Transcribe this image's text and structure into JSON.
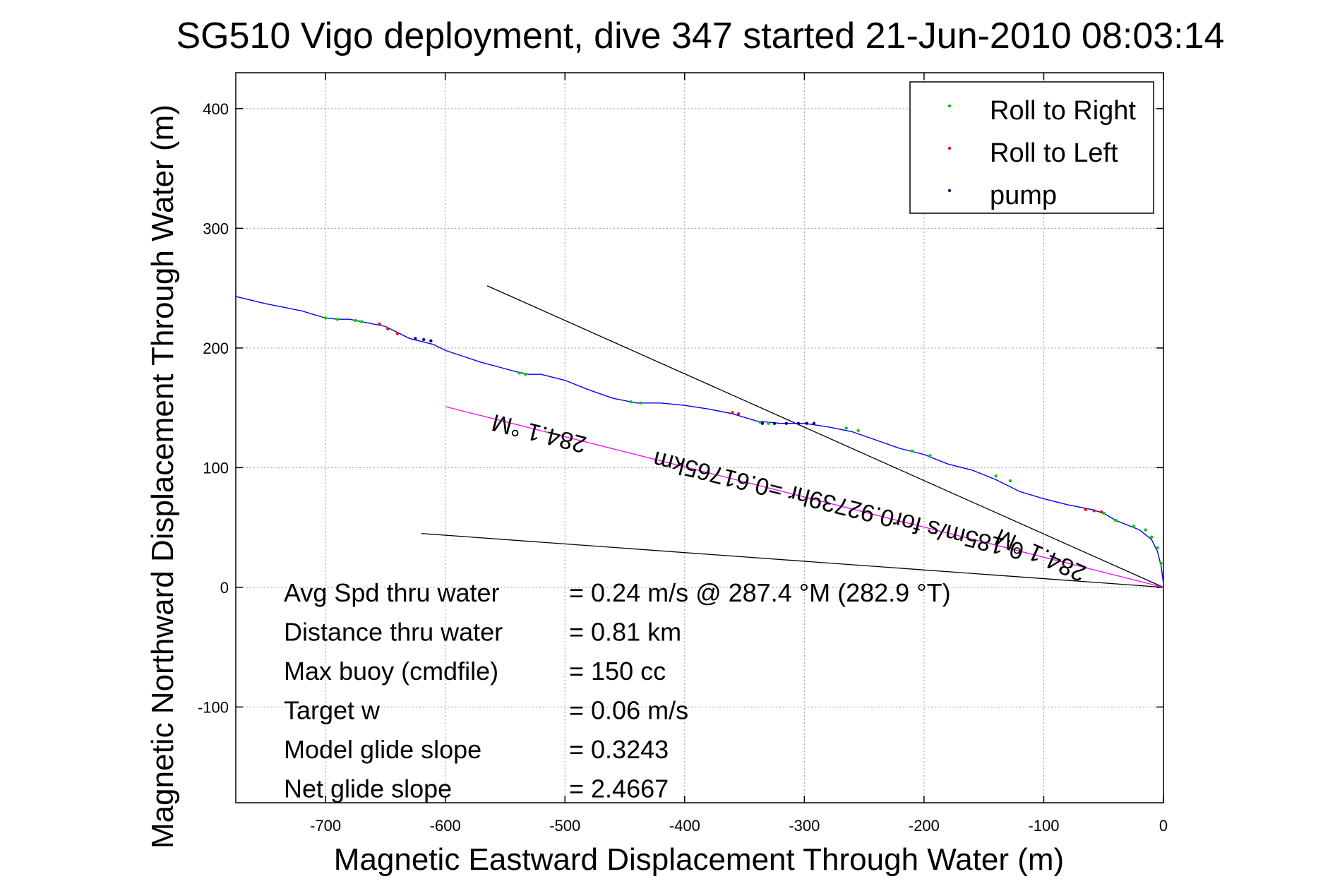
{
  "title": "SG510 Vigo deployment, dive 347 started 21-Jun-2010 08:03:14",
  "chart_data": {
    "type": "line",
    "xlabel": "Magnetic Eastward Displacement Through Water (m)",
    "ylabel": "Magnetic Northward Displacement Through Water (m)",
    "xlim": [
      -775,
      0
    ],
    "ylim": [
      -180,
      430
    ],
    "xticks": [
      -700,
      -600,
      -500,
      -400,
      -300,
      -200,
      -100,
      0
    ],
    "yticks": [
      -100,
      0,
      100,
      200,
      300,
      400
    ],
    "xtick_labels": [
      "-700",
      "-600",
      "-500",
      "-400",
      "-300",
      "-200",
      "-100",
      "0"
    ],
    "ytick_labels": [
      "-100",
      "0",
      "100",
      "200",
      "300",
      "400"
    ],
    "grid": true,
    "legend_position": "top-right",
    "legend": [
      {
        "label": "Roll to Right",
        "color": "#00cc00"
      },
      {
        "label": "Roll to Left",
        "color": "#ff0000"
      },
      {
        "label": "pump",
        "color": "#000080"
      }
    ],
    "track": {
      "color": "#0000ff",
      "x": [
        -775,
        -750,
        -720,
        -700,
        -690,
        -680,
        -670,
        -650,
        -630,
        -610,
        -600,
        -585,
        -570,
        -555,
        -540,
        -530,
        -520,
        -500,
        -480,
        -460,
        -440,
        -420,
        -400,
        -380,
        -360,
        -340,
        -320,
        -300,
        -280,
        -260,
        -240,
        -220,
        -200,
        -180,
        -160,
        -140,
        -120,
        -100,
        -80,
        -60,
        -50,
        -40,
        -30,
        -20,
        -10,
        -5,
        -2,
        0
      ],
      "y": [
        243,
        237,
        231,
        225,
        224,
        224,
        222,
        218,
        208,
        203,
        198,
        193,
        188,
        184,
        180,
        178,
        178,
        173,
        165,
        158,
        154,
        154,
        152,
        149,
        145,
        139,
        137,
        137,
        134,
        130,
        123,
        116,
        111,
        103,
        98,
        90,
        80,
        74,
        69,
        65,
        62,
        56,
        52,
        48,
        40,
        30,
        18,
        3
      ]
    },
    "markers": {
      "roll_right_x": [
        -700,
        -690,
        -675,
        -670,
        -538,
        -533,
        -445,
        -437,
        -337,
        -330,
        -265,
        -255,
        -210,
        -195,
        -140,
        -128,
        -50,
        -40,
        -25,
        -15,
        -10,
        -5,
        -2
      ],
      "roll_right_y": [
        225,
        224,
        223,
        222,
        179,
        178,
        155,
        154,
        138,
        137,
        133,
        131,
        114,
        110,
        93,
        89,
        62,
        56,
        51,
        48,
        42,
        33,
        20
      ],
      "roll_left_x": [
        -655,
        -648,
        -640,
        -360,
        -355,
        -65,
        -58,
        -52
      ],
      "roll_left_y": [
        220,
        216,
        212,
        146,
        145,
        65,
        64,
        63
      ],
      "pump_x": [
        -625,
        -618,
        -612,
        -335,
        -325,
        -315,
        -305,
        -298,
        -292
      ],
      "pump_y": [
        208,
        207,
        206,
        137,
        137,
        137,
        137,
        137,
        137
      ]
    },
    "lines": [
      {
        "name": "current_line",
        "color": "#000000",
        "x": [
          -565,
          0
        ],
        "y": [
          252,
          0
        ]
      },
      {
        "name": "wind_line",
        "color": "#000000",
        "x": [
          -620,
          0
        ],
        "y": [
          45,
          0
        ]
      },
      {
        "name": "heading_line",
        "color": "#ff00ff",
        "x": [
          -600,
          0
        ],
        "y": [
          151,
          0
        ]
      }
    ],
    "annotations": [
      {
        "text": "284.1 °M",
        "x": -520,
        "y": 135,
        "rotation": 194.1
      },
      {
        "text": "0.185m/s for0.92739hr =0.61765km",
        "x": -270,
        "y": 75,
        "rotation": 194.1
      },
      {
        "text": "284.1 °M",
        "x": -100,
        "y": 33,
        "rotation": 204.1
      }
    ],
    "stats": [
      {
        "label": "Avg Spd thru water",
        "value": "=  0.24 m/s @ 287.4 °M (282.9 °T)"
      },
      {
        "label": "Distance thru water",
        "value": "=  0.81 km"
      },
      {
        "label": "Max buoy (cmdfile)",
        "value": "= 150 cc"
      },
      {
        "label": "Target w",
        "value": "= 0.06 m/s"
      },
      {
        "label": "Model glide slope",
        "value": "= 0.3243"
      },
      {
        "label": "Net glide slope",
        "value": "= 2.4667"
      }
    ]
  }
}
